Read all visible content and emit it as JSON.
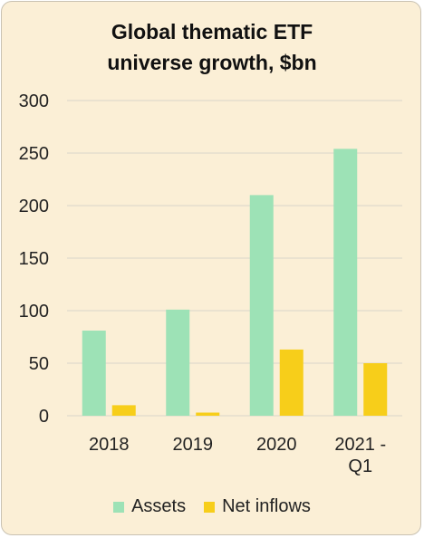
{
  "chart_data": {
    "type": "bar",
    "title_lines": [
      "Global thematic ETF",
      "universe growth, $bn"
    ],
    "categories": [
      [
        "2018"
      ],
      [
        "2019"
      ],
      [
        "2020"
      ],
      [
        "2021 -",
        "Q1"
      ]
    ],
    "series": [
      {
        "name": "Assets",
        "values": [
          81,
          101,
          210,
          254
        ],
        "color": "#9de2b6"
      },
      {
        "name": "Net inflows",
        "values": [
          10,
          3,
          63,
          50
        ],
        "color": "#f7ce1a"
      }
    ],
    "ylim": [
      0,
      300
    ],
    "yticks": [
      0,
      50,
      100,
      150,
      200,
      250,
      300
    ],
    "xlabel": "",
    "ylabel": "",
    "grid": true,
    "legend_position": "bottom-center"
  },
  "colors": {
    "background": "#fbefd6",
    "gridline": "#d9d4c9"
  }
}
